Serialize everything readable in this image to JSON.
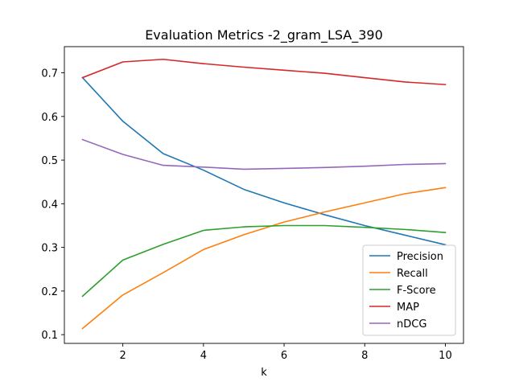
{
  "chart_data": {
    "type": "line",
    "title": "Evaluation Metrics -2_gram_LSA_390",
    "xlabel": "k",
    "ylabel": "",
    "x": [
      1,
      2,
      3,
      4,
      5,
      6,
      7,
      8,
      9,
      10
    ],
    "xlim": [
      0.55,
      10.45
    ],
    "ylim": [
      0.08,
      0.76
    ],
    "xticks": [
      2,
      4,
      6,
      8,
      10
    ],
    "yticks": [
      0.1,
      0.2,
      0.3,
      0.4,
      0.5,
      0.6,
      0.7
    ],
    "ytick_labels": [
      "0.1",
      "0.2",
      "0.3",
      "0.4",
      "0.5",
      "0.6",
      "0.7"
    ],
    "grid": false,
    "legend_position": "lower-right",
    "series": [
      {
        "name": "Precision",
        "color": "#1f77b4",
        "values": [
          0.689,
          0.589,
          0.515,
          0.477,
          0.433,
          0.402,
          0.375,
          0.35,
          0.328,
          0.306
        ]
      },
      {
        "name": "Recall",
        "color": "#ff7f0e",
        "values": [
          0.114,
          0.191,
          0.242,
          0.295,
          0.329,
          0.358,
          0.381,
          0.402,
          0.423,
          0.437
        ]
      },
      {
        "name": "F-Score",
        "color": "#2ca02c",
        "values": [
          0.188,
          0.271,
          0.307,
          0.339,
          0.347,
          0.35,
          0.35,
          0.346,
          0.341,
          0.334
        ]
      },
      {
        "name": "MAP",
        "color": "#d62728",
        "values": [
          0.689,
          0.725,
          0.731,
          0.721,
          0.713,
          0.706,
          0.699,
          0.689,
          0.679,
          0.673
        ]
      },
      {
        "name": "nDCG",
        "color": "#9467bd",
        "values": [
          0.547,
          0.513,
          0.488,
          0.484,
          0.479,
          0.481,
          0.483,
          0.486,
          0.49,
          0.492
        ]
      }
    ]
  }
}
